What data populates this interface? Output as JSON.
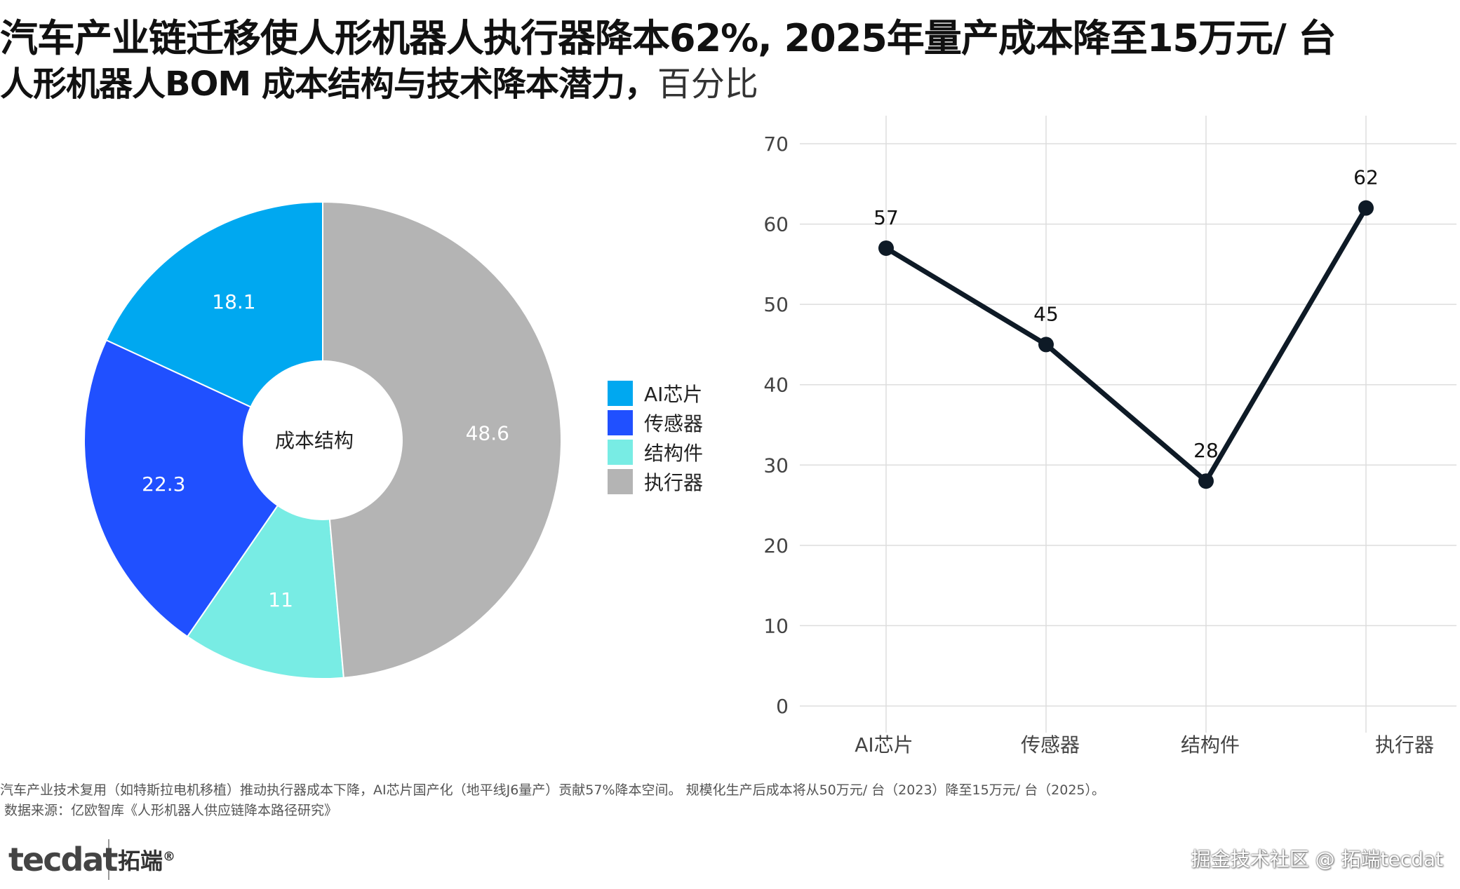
{
  "title": "汽车产业链迁移使人形机器人执行器降本62%, 2025年量产成本降至15万元/ 台",
  "subtitle": {
    "main": "人形机器人BOM 成本结构与技术降本潜力，",
    "unit": "百分比"
  },
  "chart_data": [
    {
      "type": "pie",
      "variant": "donut",
      "center_label": "成本结构",
      "categories": [
        "AI芯片",
        "传感器",
        "结构件",
        "执行器"
      ],
      "values": [
        18.1,
        22.3,
        11,
        48.6
      ],
      "value_labels": [
        "18.1",
        "22.3",
        "11",
        "48.6"
      ],
      "colors": [
        "#00a8f0",
        "#2050ff",
        "#78ece4",
        "#b4b4b4"
      ],
      "legend_position": "right"
    },
    {
      "type": "line",
      "categories": [
        "AI芯片",
        "传感器",
        "结构件",
        "执行器"
      ],
      "values": [
        57,
        45,
        28,
        62
      ],
      "value_labels": [
        "57",
        "45",
        "28",
        "62"
      ],
      "ylim": [
        0,
        70
      ],
      "yticks": [
        "0",
        "10",
        "20",
        "30",
        "40",
        "50",
        "60",
        "70"
      ],
      "grid": true,
      "line_color": "#0e1a26"
    }
  ],
  "footer": {
    "note": "汽车产业技术复用（如特斯拉电机移植）推动执行器成本下降，AI芯片国产化（地平线J6量产）贡献57%降本空间。 规模化生产后成本将从50万元/ 台（2023）降至15万元/ 台（2025）。",
    "source": "数据来源：亿欧智库《人形机器人供应链降本路径研究》",
    "brand_logo": "tecdat",
    "brand_cn": "拓端",
    "brand_reg": "®",
    "watermark": "掘金技术社区 @ 拓端tecdat"
  }
}
